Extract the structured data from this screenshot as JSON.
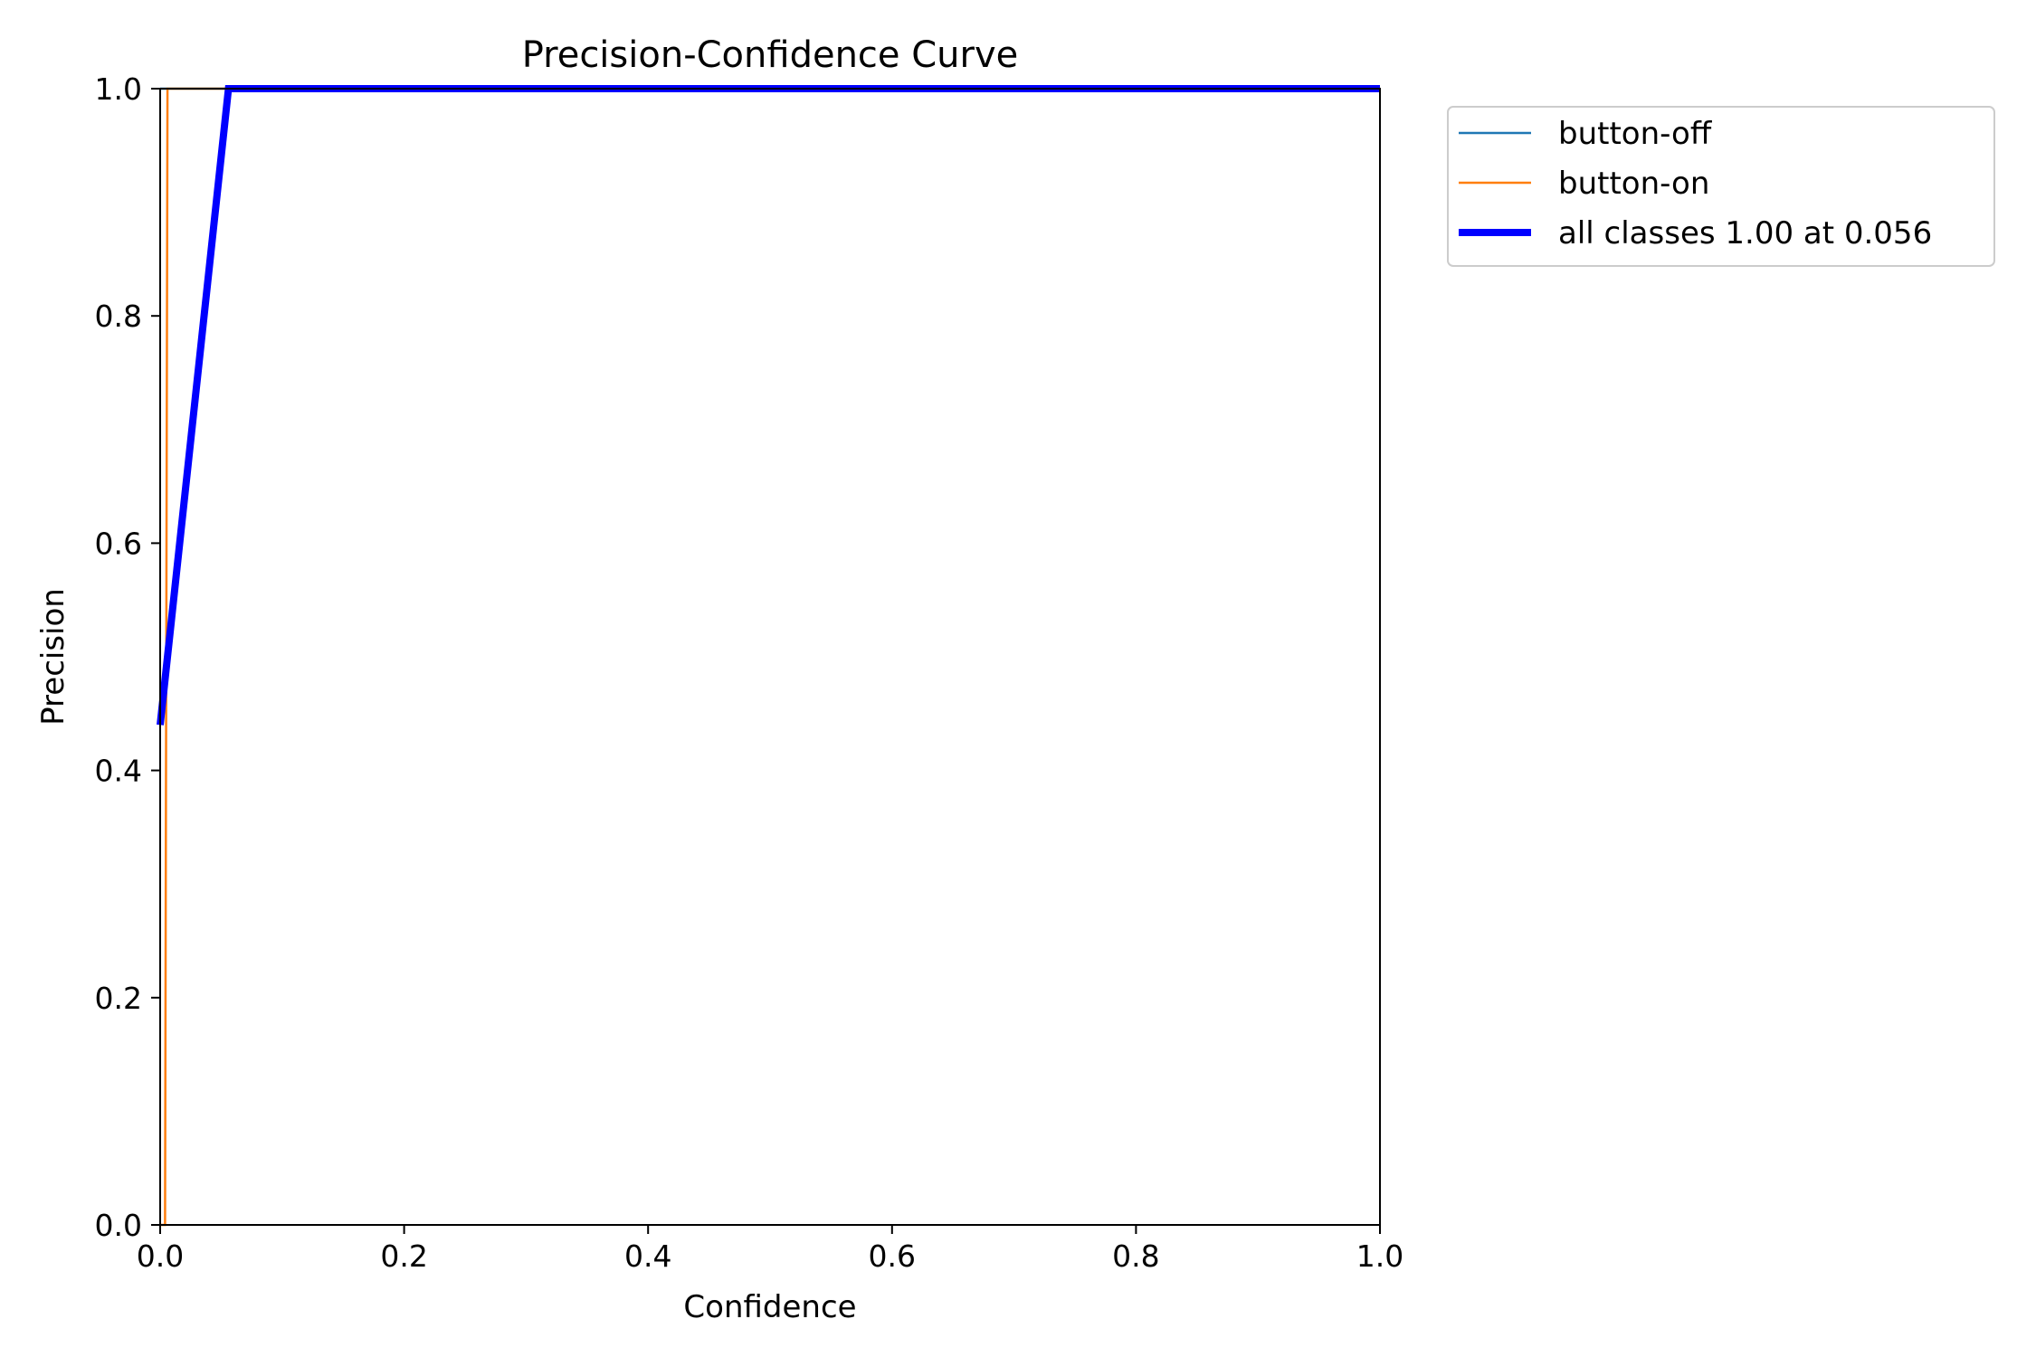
{
  "chart_data": {
    "type": "line",
    "title": "Precision-Confidence Curve",
    "xlabel": "Confidence",
    "ylabel": "Precision",
    "xlim": [
      0,
      1
    ],
    "ylim": [
      0,
      1
    ],
    "x_ticks": [
      "0.0",
      "0.2",
      "0.4",
      "0.6",
      "0.8",
      "1.0"
    ],
    "y_ticks": [
      "0.0",
      "0.2",
      "0.4",
      "0.6",
      "0.8",
      "1.0"
    ],
    "grid": false,
    "legend_position": "outside top-right",
    "series": [
      {
        "name": "button-off",
        "color": "#1f77b4",
        "line": "thin",
        "points": [
          [
            0.0,
            1.0
          ],
          [
            0.056,
            1.0
          ],
          [
            1.0,
            1.0
          ]
        ]
      },
      {
        "name": "button-on",
        "color": "#ff7f0e",
        "line": "thin",
        "points": [
          [
            0.0,
            0.0
          ],
          [
            0.004,
            0.0
          ],
          [
            0.006,
            1.0
          ],
          [
            1.0,
            1.0
          ]
        ]
      },
      {
        "name": "all classes 1.00 at 0.056",
        "color": "#0000ff",
        "line": "thick",
        "points": [
          [
            0.0,
            0.44
          ],
          [
            0.056,
            1.0
          ],
          [
            1.0,
            1.0
          ]
        ]
      }
    ]
  }
}
